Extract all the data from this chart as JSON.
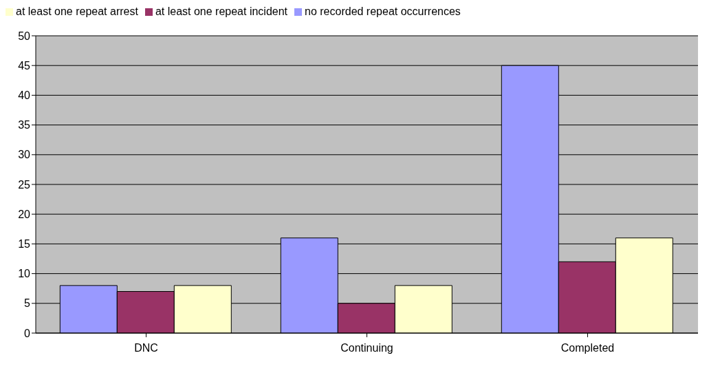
{
  "chart_data": {
    "type": "bar",
    "categories": [
      "DNC",
      "Continuing",
      "Completed"
    ],
    "series": [
      {
        "name": "no recorded repeat occurrences",
        "color": "#9999ff",
        "values": [
          8,
          16,
          45
        ]
      },
      {
        "name": "at least one repeat incident",
        "color": "#993366",
        "values": [
          7,
          5,
          12
        ]
      },
      {
        "name": "at least one repeat arrest",
        "color": "#ffffcc",
        "values": [
          8,
          8,
          16
        ]
      }
    ],
    "ylim": [
      0,
      50
    ],
    "yticks": [
      0,
      5,
      10,
      15,
      20,
      25,
      30,
      35,
      40,
      45,
      50
    ],
    "grid": "y",
    "legend": "top"
  }
}
